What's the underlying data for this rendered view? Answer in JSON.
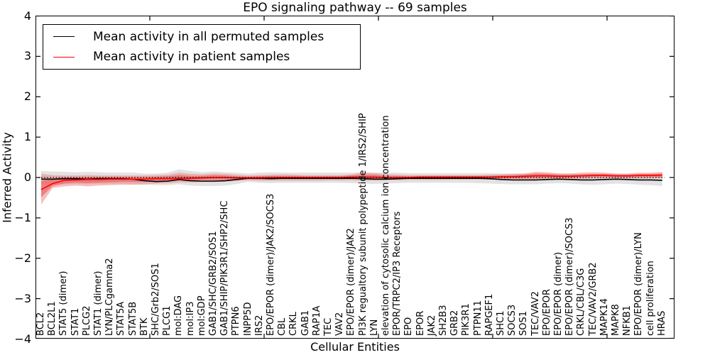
{
  "figure": {
    "title": "EPO signaling pathway -- 69 samples",
    "xlabel": "Cellular Entities",
    "ylabel": "Inferred Activity"
  },
  "chart_data": {
    "type": "line",
    "title": "EPO signaling pathway -- 69 samples",
    "xlabel": "Cellular Entities",
    "ylabel": "Inferred Activity",
    "ylim": [
      -4,
      4
    ],
    "grid": false,
    "legend_position": "upper left",
    "zero_line": true,
    "yticks": [
      4,
      3,
      2,
      1,
      0,
      -1,
      -2,
      -3,
      -4
    ],
    "ytick_labels": [
      "4",
      "3",
      "2",
      "1",
      "0",
      "−1",
      "−2",
      "−3",
      "−4"
    ],
    "categories": [
      "BCL2",
      "BCL2L1",
      "STAT5 (dimer)",
      "STAT1",
      "PLCG2",
      "STAT1 (dimer)",
      "LYN/PLCgamma2",
      "STAT5A",
      "STAT5B",
      "BTK",
      "SHC/Grb2/SOS1",
      "PLCG1",
      "mol:DAG",
      "mol:IP3",
      "mol:GDP",
      "GAB1/SHC/GRB2/SOS1",
      "GAB1/SHIP/PIK3R1/SHP2/SHC",
      "PTPN6",
      "INPP5D",
      "IRS2",
      "EPO/EPOR (dimer)/JAK2/SOCS3",
      "CBL",
      "CRKL",
      "GAB1",
      "RAP1A",
      "TEC",
      "VAV2",
      "EPO/EPOR (dimer)/JAK2",
      "PI3K regualtory subunit polypeptide 1/IRS2/SHIP",
      "LYN",
      "elevation of cytosolic calcium ion concentration",
      "EPOR/TRPC2/IP3 Receptors",
      "EPO",
      "EPOR",
      "JAK2",
      "SH2B3",
      "GRB2",
      "PIK3R1",
      "PTPN11",
      "RAPGEF1",
      "SHC1",
      "SOCS3",
      "SOS1",
      "TEC/VAV2",
      "EPO/EPOR",
      "EPO/EPOR (dimer)",
      "EPO/EPOR (dimer)/SOCS3",
      "CRKL/CBL/C3G",
      "TEC/VAV2/GRB2",
      "MAPK14",
      "MAPK8",
      "NFKB1",
      "EPO/EPOR (dimer)/LYN",
      "cell proliferation",
      "HRAS"
    ],
    "series": [
      {
        "name": "Mean activity in all permuted samples",
        "color": "#000000",
        "values": [
          -0.04,
          -0.04,
          -0.03,
          -0.03,
          -0.04,
          -0.03,
          -0.03,
          -0.03,
          -0.04,
          -0.08,
          -0.1,
          -0.09,
          -0.05,
          -0.08,
          -0.09,
          -0.09,
          -0.08,
          -0.05,
          -0.02,
          -0.02,
          -0.03,
          -0.02,
          -0.02,
          -0.02,
          -0.02,
          -0.02,
          -0.02,
          -0.02,
          -0.03,
          -0.04,
          -0.04,
          -0.03,
          -0.02,
          -0.02,
          -0.02,
          -0.02,
          -0.02,
          -0.02,
          -0.02,
          -0.03,
          -0.05,
          -0.06,
          -0.06,
          -0.06,
          -0.05,
          -0.04,
          -0.05,
          -0.06,
          -0.06,
          -0.05,
          -0.04,
          -0.05,
          -0.06,
          -0.06,
          -0.07
        ]
      },
      {
        "name": "Mean activity in patient samples",
        "color": "#ff0000",
        "values": [
          -0.3,
          -0.15,
          -0.07,
          -0.06,
          -0.05,
          -0.05,
          -0.04,
          -0.04,
          -0.04,
          -0.04,
          -0.03,
          -0.03,
          -0.02,
          -0.02,
          -0.01,
          0.0,
          0.0,
          -0.01,
          -0.01,
          -0.01,
          0.0,
          0.0,
          0.0,
          0.0,
          0.0,
          0.0,
          0.0,
          0.01,
          0.01,
          0.01,
          0.0,
          0.0,
          0.0,
          0.01,
          0.01,
          0.01,
          0.01,
          0.01,
          0.01,
          0.01,
          0.02,
          0.02,
          0.03,
          0.04,
          0.04,
          0.03,
          0.03,
          0.04,
          0.05,
          0.05,
          0.04,
          0.04,
          0.05,
          0.05,
          0.06
        ]
      }
    ],
    "bands": [
      {
        "name": "permuted-samples-band",
        "color": "#bfbfbf",
        "opacity": 0.45,
        "hi": [
          0.16,
          0.15,
          0.14,
          0.13,
          0.14,
          0.13,
          0.12,
          0.12,
          0.12,
          0.1,
          0.1,
          0.12,
          0.2,
          0.16,
          0.13,
          0.15,
          0.13,
          0.12,
          0.1,
          0.12,
          0.13,
          0.12,
          0.12,
          0.12,
          0.12,
          0.12,
          0.12,
          0.12,
          0.13,
          0.12,
          0.12,
          0.12,
          0.11,
          0.11,
          0.11,
          0.11,
          0.11,
          0.11,
          0.11,
          0.11,
          0.1,
          0.1,
          0.1,
          0.1,
          0.1,
          0.1,
          0.1,
          0.09,
          0.09,
          0.09,
          0.09,
          0.09,
          0.08,
          0.08,
          0.08
        ],
        "lo": [
          -0.18,
          -0.17,
          -0.17,
          -0.16,
          -0.17,
          -0.16,
          -0.16,
          -0.16,
          -0.17,
          -0.18,
          -0.19,
          -0.19,
          -0.17,
          -0.2,
          -0.21,
          -0.21,
          -0.2,
          -0.16,
          -0.11,
          -0.13,
          -0.14,
          -0.13,
          -0.13,
          -0.13,
          -0.13,
          -0.13,
          -0.13,
          -0.14,
          -0.15,
          -0.16,
          -0.15,
          -0.14,
          -0.13,
          -0.13,
          -0.13,
          -0.13,
          -0.13,
          -0.13,
          -0.14,
          -0.15,
          -0.16,
          -0.17,
          -0.17,
          -0.17,
          -0.15,
          -0.14,
          -0.15,
          -0.17,
          -0.18,
          -0.17,
          -0.15,
          -0.16,
          -0.18,
          -0.19,
          -0.21
        ]
      },
      {
        "name": "patient-samples-band-outer",
        "color": "#f08080",
        "opacity": 0.5,
        "hi": [
          0.09,
          0.06,
          0.05,
          0.05,
          0.06,
          0.05,
          0.05,
          0.05,
          0.05,
          0.05,
          0.06,
          0.07,
          0.12,
          0.09,
          0.08,
          0.1,
          0.09,
          0.07,
          0.05,
          0.06,
          0.07,
          0.08,
          0.07,
          0.06,
          0.06,
          0.06,
          0.06,
          0.08,
          0.12,
          0.11,
          0.08,
          0.07,
          0.06,
          0.06,
          0.06,
          0.06,
          0.06,
          0.06,
          0.06,
          0.07,
          0.08,
          0.09,
          0.1,
          0.14,
          0.13,
          0.1,
          0.1,
          0.12,
          0.13,
          0.12,
          0.1,
          0.1,
          0.12,
          0.12,
          0.14
        ],
        "lo": [
          -0.67,
          -0.26,
          -0.22,
          -0.2,
          -0.22,
          -0.2,
          -0.19,
          -0.18,
          -0.18,
          -0.17,
          -0.15,
          -0.14,
          -0.12,
          -0.12,
          -0.11,
          -0.11,
          -0.1,
          -0.09,
          -0.07,
          -0.08,
          -0.08,
          -0.08,
          -0.08,
          -0.08,
          -0.08,
          -0.07,
          -0.07,
          -0.07,
          -0.08,
          -0.08,
          -0.07,
          -0.07,
          -0.06,
          -0.06,
          -0.06,
          -0.06,
          -0.05,
          -0.05,
          -0.05,
          -0.05,
          -0.05,
          -0.04,
          -0.04,
          -0.04,
          -0.03,
          -0.03,
          -0.03,
          -0.03,
          -0.02,
          -0.02,
          -0.02,
          -0.02,
          -0.02,
          -0.02,
          -0.02
        ]
      },
      {
        "name": "patient-samples-band-inner",
        "color": "#e85050",
        "opacity": 0.55,
        "hi": [
          -0.09,
          -0.03,
          0.0,
          0.0,
          0.01,
          0.01,
          0.01,
          0.01,
          0.01,
          0.01,
          0.02,
          0.03,
          0.06,
          0.04,
          0.04,
          0.06,
          0.05,
          0.03,
          0.02,
          0.03,
          0.04,
          0.04,
          0.04,
          0.03,
          0.03,
          0.03,
          0.03,
          0.05,
          0.07,
          0.07,
          0.04,
          0.04,
          0.03,
          0.04,
          0.04,
          0.04,
          0.04,
          0.04,
          0.04,
          0.04,
          0.05,
          0.06,
          0.07,
          0.1,
          0.09,
          0.07,
          0.07,
          0.08,
          0.09,
          0.09,
          0.07,
          0.07,
          0.09,
          0.09,
          0.1
        ],
        "lo": [
          -0.49,
          -0.21,
          -0.15,
          -0.13,
          -0.14,
          -0.13,
          -0.12,
          -0.11,
          -0.11,
          -0.11,
          -0.09,
          -0.09,
          -0.07,
          -0.07,
          -0.06,
          -0.06,
          -0.05,
          -0.05,
          -0.04,
          -0.05,
          -0.04,
          -0.04,
          -0.04,
          -0.04,
          -0.04,
          -0.04,
          -0.04,
          -0.03,
          -0.04,
          -0.04,
          -0.04,
          -0.04,
          -0.03,
          -0.03,
          -0.03,
          -0.03,
          -0.02,
          -0.02,
          -0.02,
          -0.02,
          -0.02,
          -0.01,
          -0.01,
          0.0,
          0.0,
          0.0,
          0.0,
          0.01,
          0.02,
          0.02,
          0.01,
          0.01,
          0.02,
          0.02,
          0.02
        ]
      }
    ]
  }
}
